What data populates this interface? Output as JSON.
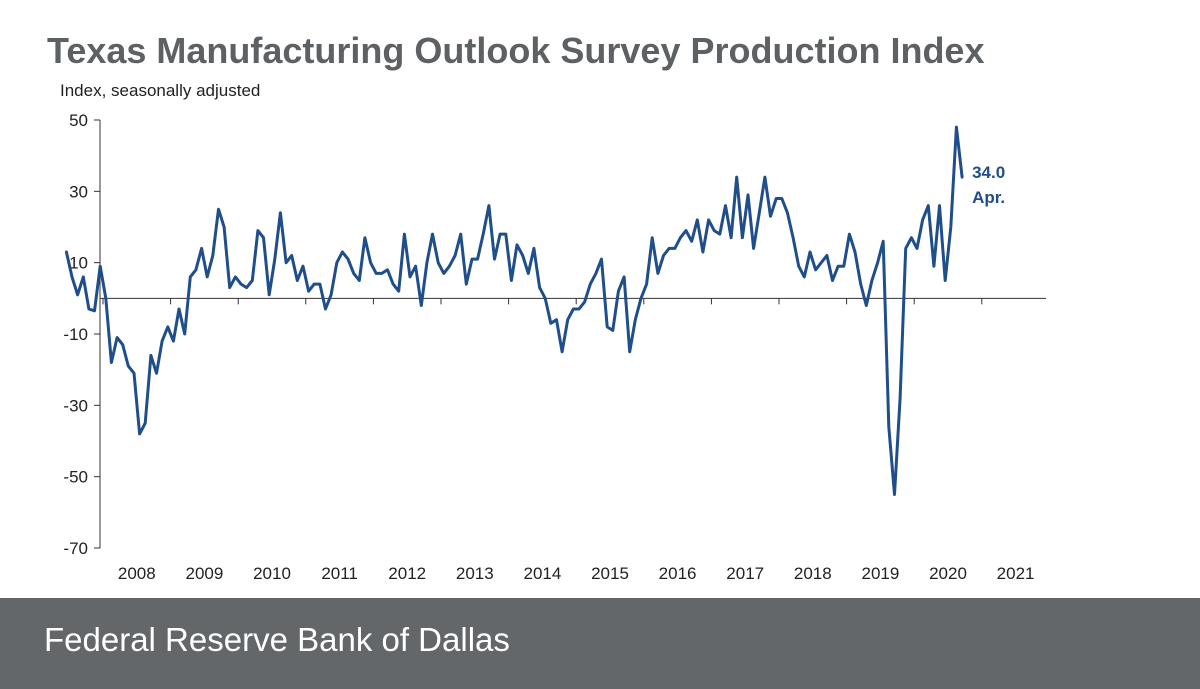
{
  "title": "Texas Manufacturing Outlook Survey Production Index",
  "footer": {
    "text": "Federal Reserve Bank of Dallas"
  },
  "colors": {
    "line": "#1f4e8a",
    "title": "#5d6164",
    "footer_bg": "#63676a",
    "axis": "#333333"
  },
  "chart_data": {
    "type": "line",
    "ylabel": "Index, seasonally adjusted",
    "ylim": [
      -70,
      50
    ],
    "yticks": [
      50,
      30,
      10,
      -10,
      -30,
      -50,
      -70
    ],
    "zero_line": 0,
    "x_start": "2007-06",
    "xticks": [
      "2008",
      "2009",
      "2010",
      "2011",
      "2012",
      "2013",
      "2014",
      "2015",
      "2016",
      "2017",
      "2018",
      "2019",
      "2020",
      "2021"
    ],
    "annotation": {
      "value": "34.0",
      "label": "Apr."
    },
    "series": [
      {
        "values": [
          13,
          6,
          1,
          6,
          -3,
          -3.5,
          9,
          0,
          -18,
          -11,
          -13,
          -19,
          -21,
          -38,
          -35,
          -16,
          -21,
          -12,
          -8,
          -12,
          -3,
          -10,
          6,
          8,
          14,
          6,
          12,
          25,
          20,
          3,
          6,
          4,
          3,
          5,
          19,
          17,
          1,
          11,
          24,
          10,
          12,
          5,
          9,
          2,
          4,
          4,
          -3,
          1,
          10,
          13,
          11,
          7,
          5,
          17,
          10,
          7,
          7,
          8,
          4,
          2,
          18,
          6,
          9,
          -2,
          10,
          18,
          10,
          7,
          9,
          12,
          18,
          4,
          11,
          11,
          18,
          26,
          11,
          18,
          18,
          5,
          15,
          12,
          7,
          14,
          3,
          0,
          -7,
          -6,
          -15,
          -6,
          -3,
          -3,
          -1,
          4,
          7,
          11,
          -8,
          -9,
          2,
          6,
          -15,
          -6,
          0,
          4,
          17,
          7,
          12,
          14,
          14,
          17,
          19,
          16,
          22,
          13,
          22,
          19,
          18,
          26,
          17,
          34,
          17,
          29,
          14,
          24,
          34,
          23,
          28,
          28,
          24,
          17,
          9,
          6,
          13,
          8,
          10,
          12,
          5,
          9,
          9,
          18,
          13,
          4,
          -2,
          5,
          10,
          16,
          -36,
          -55,
          -28,
          14,
          17,
          14,
          22,
          26,
          9,
          26,
          5,
          20,
          48,
          34
        ]
      }
    ]
  }
}
